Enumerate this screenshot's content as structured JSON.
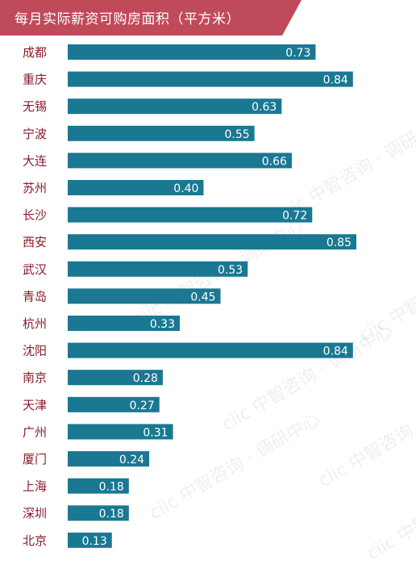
{
  "header": {
    "title": "每月实际薪资可购房面积（平方米）",
    "bg_color": "#bf4a5a"
  },
  "watermark": "ciic 中智咨询 · 调研中心",
  "chart_data": {
    "type": "bar",
    "orientation": "horizontal",
    "title": "每月实际薪资可购房面积（平方米）",
    "bar_color": "#1a7892",
    "label_color": "#8a1c2b",
    "categories": [
      "成都",
      "重庆",
      "无锡",
      "宁波",
      "大连",
      "苏州",
      "长沙",
      "西安",
      "武汉",
      "青岛",
      "杭州",
      "沈阳",
      "南京",
      "天津",
      "广州",
      "厦门",
      "上海",
      "深圳",
      "北京"
    ],
    "values": [
      0.73,
      0.84,
      0.63,
      0.55,
      0.66,
      0.4,
      0.72,
      0.85,
      0.53,
      0.45,
      0.33,
      0.84,
      0.28,
      0.27,
      0.31,
      0.24,
      0.18,
      0.18,
      0.13
    ],
    "value_labels": [
      "0.73",
      "0.84",
      "0.63",
      "0.55",
      "0.66",
      "0.40",
      "0.72",
      "0.85",
      "0.53",
      "0.45",
      "0.33",
      "0.84",
      "0.28",
      "0.27",
      "0.31",
      "0.24",
      "0.18",
      "0.18",
      "0.13"
    ],
    "xlim": [
      0,
      0.85
    ]
  }
}
